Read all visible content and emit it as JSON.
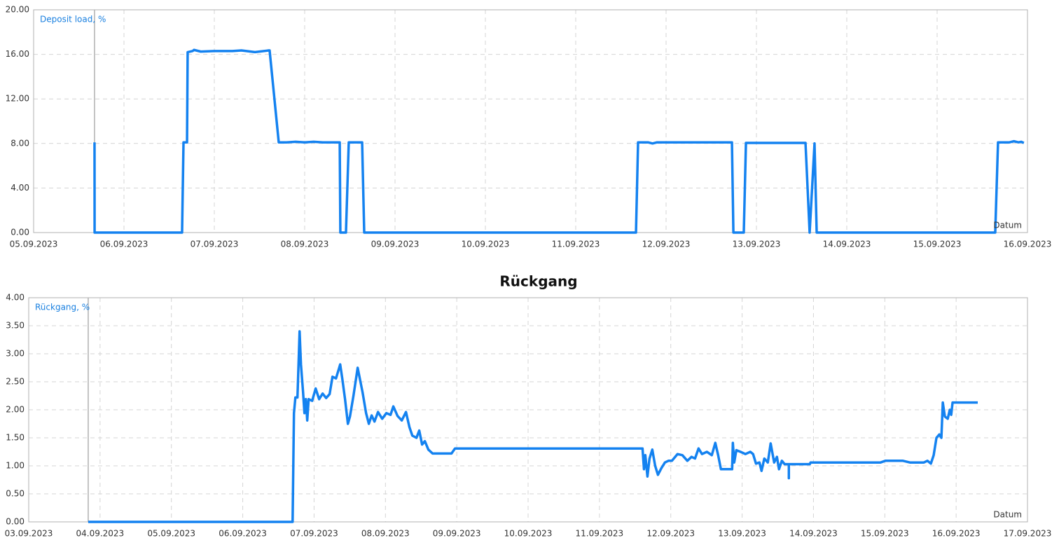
{
  "chart_data": [
    {
      "type": "line",
      "xlabel": "Datum",
      "x": [
        5.674,
        5.675,
        6.643,
        6.659,
        6.698,
        6.705,
        6.76,
        6.775,
        6.85,
        7.0,
        7.2,
        7.3,
        7.45,
        7.6,
        7.612,
        7.713,
        7.8,
        7.9,
        8.0,
        8.1,
        8.2,
        8.388,
        8.395,
        8.457,
        8.488,
        8.636,
        8.659,
        11.667,
        11.69,
        11.8,
        11.85,
        11.9,
        12.729,
        12.745,
        12.86,
        12.884,
        13.543,
        13.589,
        13.643,
        13.667,
        15.643,
        15.674,
        15.8,
        15.85,
        15.9,
        15.93,
        15.96
      ],
      "series": [
        {
          "name": "Deposit load, %",
          "color": "#1482f0",
          "values": [
            8.1,
            0,
            0,
            8.1,
            8.1,
            16.2,
            16.3,
            16.4,
            16.25,
            16.3,
            16.3,
            16.35,
            16.2,
            16.35,
            16.35,
            8.1,
            8.1,
            8.15,
            8.1,
            8.15,
            8.1,
            8.1,
            0,
            0,
            8.1,
            8.1,
            0,
            0,
            8.1,
            8.1,
            8.0,
            8.1,
            8.1,
            0,
            0,
            8.05,
            8.05,
            0,
            8.0,
            0,
            0,
            8.1,
            8.1,
            8.2,
            8.1,
            8.15,
            8.05
          ]
        }
      ],
      "xlim": [
        5,
        16
      ],
      "xticks": [
        {
          "value": 5,
          "label": "05.09.2023"
        },
        {
          "value": 6,
          "label": "06.09.2023"
        },
        {
          "value": 7,
          "label": "07.09.2023"
        },
        {
          "value": 8,
          "label": "08.09.2023"
        },
        {
          "value": 9,
          "label": "09.09.2023"
        },
        {
          "value": 10,
          "label": "10.09.2023"
        },
        {
          "value": 11,
          "label": "11.09.2023"
        },
        {
          "value": 12,
          "label": "12.09.2023"
        },
        {
          "value": 13,
          "label": "13.09.2023"
        },
        {
          "value": 14,
          "label": "14.09.2023"
        },
        {
          "value": 15,
          "label": "15.09.2023"
        },
        {
          "value": 16,
          "label": "16.09.2023"
        }
      ],
      "ylim": [
        0,
        20
      ],
      "yticks": [
        {
          "value": 0,
          "label": "0.00"
        },
        {
          "value": 4,
          "label": "4.00"
        },
        {
          "value": 8,
          "label": "8.00"
        },
        {
          "value": 12,
          "label": "12.00"
        },
        {
          "value": 16,
          "label": "16.00"
        },
        {
          "value": 20,
          "label": "20.00"
        }
      ],
      "grid": true
    },
    {
      "type": "line",
      "title": "Rückgang",
      "xlabel": "Datum",
      "x": [
        3.834,
        6.699,
        6.718,
        6.738,
        6.767,
        6.787,
        6.797,
        6.816,
        6.846,
        6.865,
        6.885,
        6.904,
        6.924,
        6.973,
        7.022,
        7.071,
        7.12,
        7.169,
        7.218,
        7.258,
        7.307,
        7.366,
        7.395,
        7.434,
        7.474,
        7.503,
        7.552,
        7.611,
        7.68,
        7.729,
        7.768,
        7.807,
        7.847,
        7.896,
        7.955,
        8.013,
        8.072,
        8.111,
        8.17,
        8.229,
        8.288,
        8.337,
        8.377,
        8.435,
        8.474,
        8.514,
        8.553,
        8.602,
        8.661,
        8.926,
        8.975,
        11.604,
        11.624,
        11.643,
        11.673,
        11.702,
        11.741,
        11.781,
        11.82,
        11.869,
        11.918,
        11.967,
        12.016,
        12.094,
        12.163,
        12.232,
        12.291,
        12.34,
        12.389,
        12.438,
        12.506,
        12.575,
        12.624,
        12.664,
        12.703,
        12.86,
        12.87,
        12.889,
        12.919,
        12.978,
        13.046,
        13.115,
        13.154,
        13.194,
        13.243,
        13.272,
        13.311,
        13.36,
        13.4,
        13.449,
        13.488,
        13.517,
        13.557,
        13.596,
        13.655,
        13.655,
        13.655,
        13.949,
        13.959,
        14.94,
        15.008,
        15.254,
        15.352,
        15.548,
        15.597,
        15.646,
        15.685,
        15.724,
        15.764,
        15.793,
        15.813,
        15.842,
        15.882,
        15.911,
        15.931,
        15.95,
        16.303
      ],
      "series": [
        {
          "name": "Rückgang, %",
          "color": "#1482f0",
          "values": [
            0,
            0,
            1.94,
            2.22,
            2.22,
            3.0,
            3.4,
            2.81,
            2.31,
            1.94,
            2.19,
            1.81,
            2.19,
            2.16,
            2.38,
            2.19,
            2.29,
            2.21,
            2.28,
            2.59,
            2.56,
            2.81,
            2.56,
            2.19,
            1.75,
            1.88,
            2.25,
            2.75,
            2.31,
            1.94,
            1.75,
            1.9,
            1.79,
            1.96,
            1.84,
            1.94,
            1.91,
            2.06,
            1.89,
            1.81,
            1.96,
            1.69,
            1.54,
            1.5,
            1.63,
            1.38,
            1.44,
            1.29,
            1.22,
            1.22,
            1.31,
            1.31,
            0.94,
            1.19,
            0.81,
            1.13,
            1.29,
            1.0,
            0.84,
            0.96,
            1.06,
            1.09,
            1.09,
            1.21,
            1.19,
            1.09,
            1.16,
            1.13,
            1.31,
            1.21,
            1.25,
            1.19,
            1.41,
            1.19,
            0.94,
            0.94,
            1.41,
            1.06,
            1.28,
            1.25,
            1.21,
            1.25,
            1.21,
            1.04,
            1.06,
            0.91,
            1.13,
            1.06,
            1.4,
            1.06,
            1.16,
            0.94,
            1.09,
            1.03,
            1.03,
            0.78,
            1.03,
            1.03,
            1.06,
            1.06,
            1.09,
            1.09,
            1.06,
            1.06,
            1.09,
            1.04,
            1.19,
            1.5,
            1.56,
            1.5,
            2.13,
            1.88,
            1.84,
            2.0,
            1.91,
            2.13,
            2.13
          ]
        }
      ],
      "xlim": [
        3,
        17
      ],
      "xticks": [
        {
          "value": 3,
          "label": "03.09.2023"
        },
        {
          "value": 4,
          "label": "04.09.2023"
        },
        {
          "value": 5,
          "label": "05.09.2023"
        },
        {
          "value": 6,
          "label": "06.09.2023"
        },
        {
          "value": 7,
          "label": "07.09.2023"
        },
        {
          "value": 8,
          "label": "08.09.2023"
        },
        {
          "value": 9,
          "label": "09.09.2023"
        },
        {
          "value": 10,
          "label": "10.09.2023"
        },
        {
          "value": 11,
          "label": "11.09.2023"
        },
        {
          "value": 12,
          "label": "12.09.2023"
        },
        {
          "value": 13,
          "label": "13.09.2023"
        },
        {
          "value": 14,
          "label": "14.09.2023"
        },
        {
          "value": 15,
          "label": "15.09.2023"
        },
        {
          "value": 16,
          "label": "16.09.2023"
        },
        {
          "value": 17,
          "label": "17.09.2023"
        }
      ],
      "ylim": [
        0,
        4
      ],
      "yticks": [
        {
          "value": 0,
          "label": "0.00"
        },
        {
          "value": 0.5,
          "label": "0.50"
        },
        {
          "value": 1,
          "label": "1.00"
        },
        {
          "value": 1.5,
          "label": "1.50"
        },
        {
          "value": 2,
          "label": "2.00"
        },
        {
          "value": 2.5,
          "label": "2.50"
        },
        {
          "value": 3,
          "label": "3.00"
        },
        {
          "value": 3.5,
          "label": "3.50"
        },
        {
          "value": 4,
          "label": "4.00"
        }
      ],
      "grid": true
    }
  ]
}
